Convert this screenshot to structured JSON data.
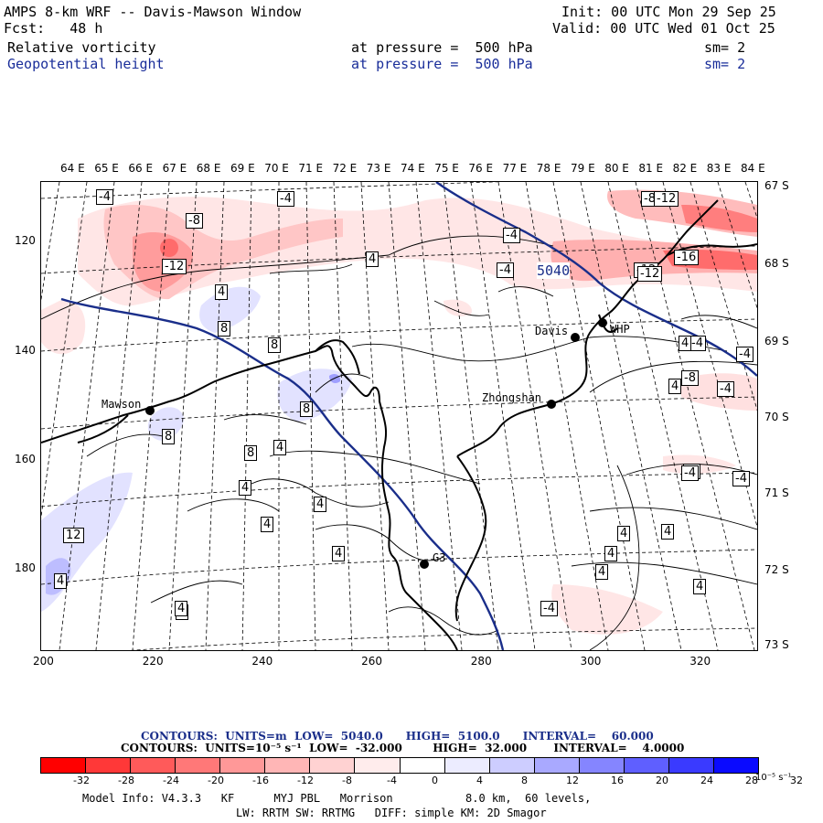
{
  "header": {
    "title": "AMPS 8-km WRF -- Davis-Mawson Window",
    "fcst": "Fcst:   48 h",
    "init": "Init: 00 UTC Mon 29 Sep 25",
    "valid": "Valid: 00 UTC Wed 01 Oct 25",
    "field1": "Relative vorticity",
    "field1_level": "at pressure =  500 hPa",
    "field1_sm": "sm= 2",
    "field2": "Geopotential height",
    "field2_level": "at pressure =  500 hPa",
    "field2_sm": "sm= 2"
  },
  "top_ticks": [
    "64 E",
    "65 E",
    "66 E",
    "67 E",
    "68 E",
    "69 E",
    "70 E",
    "71 E",
    "72 E",
    "73 E",
    "74 E",
    "75 E",
    "76 E",
    "77 E",
    "78 E",
    "79 E",
    "80 E",
    "81 E",
    "82 E",
    "83 E",
    "84 E"
  ],
  "right_ticks": [
    "67 S",
    "68 S",
    "69 S",
    "70 S",
    "71 S",
    "72 S",
    "73 S"
  ],
  "left_ticks": [
    "120",
    "140",
    "160",
    "180"
  ],
  "bottom_ticks": [
    "200",
    "220",
    "240",
    "260",
    "280",
    "300",
    "320"
  ],
  "stations": {
    "mawson": "Mawson",
    "davis": "Davis",
    "whp": "WHP",
    "zhongshan": "Zhongshan",
    "g3": "G3"
  },
  "height_label": "5040",
  "contour_labels": [
    "-4",
    "-4",
    "-8",
    "-12",
    "-4",
    "-8",
    "-4",
    "-12",
    "4",
    "4",
    "8",
    "8",
    "8",
    "8",
    "4",
    "4",
    "4",
    "4",
    "4",
    "4",
    "4",
    "4",
    "4",
    "8",
    "12",
    "4",
    "-4",
    "-4",
    "-8",
    "-12",
    "-16",
    "-12",
    "-4",
    "-4",
    "4",
    "-4",
    "4",
    "-4",
    "4",
    "4",
    "4",
    "-4"
  ],
  "legend": {
    "line1": "CONTOURS:  UNITS=m  LOW=  5040.0      HIGH=  5100.0      INTERVAL=    60.000",
    "line2": "CONTOURS:  UNITS=10⁻⁵ s⁻¹  LOW=  -32.000        HIGH=  32.000       INTERVAL=    4.0000",
    "colors": [
      "#ff0000",
      "#ff3838",
      "#ff5a5a",
      "#ff7878",
      "#ff9898",
      "#ffb6b6",
      "#ffd2d2",
      "#ffecec",
      "#ffffff",
      "#ffffff",
      "#ececff",
      "#cdcdff",
      "#a9a9ff",
      "#8585ff",
      "#5f5fff",
      "#3a3aff",
      "#0a0aff"
    ],
    "labels": [
      "-32",
      "-28",
      "-24",
      "-20",
      "-16",
      "-12",
      "-8",
      "-4",
      "0",
      "4",
      "8",
      "12",
      "16",
      "20",
      "24",
      "28",
      "32"
    ],
    "unit": "10⁻⁵ s⁻¹"
  },
  "footer": {
    "model": "Model Info: V4.3.3   KF      MYJ PBL   Morrison           8.0 km,  60 levels,",
    "physics": "LW: RRTM SW: RRTMG   DIFF: simple KM: 2D Smagor"
  }
}
